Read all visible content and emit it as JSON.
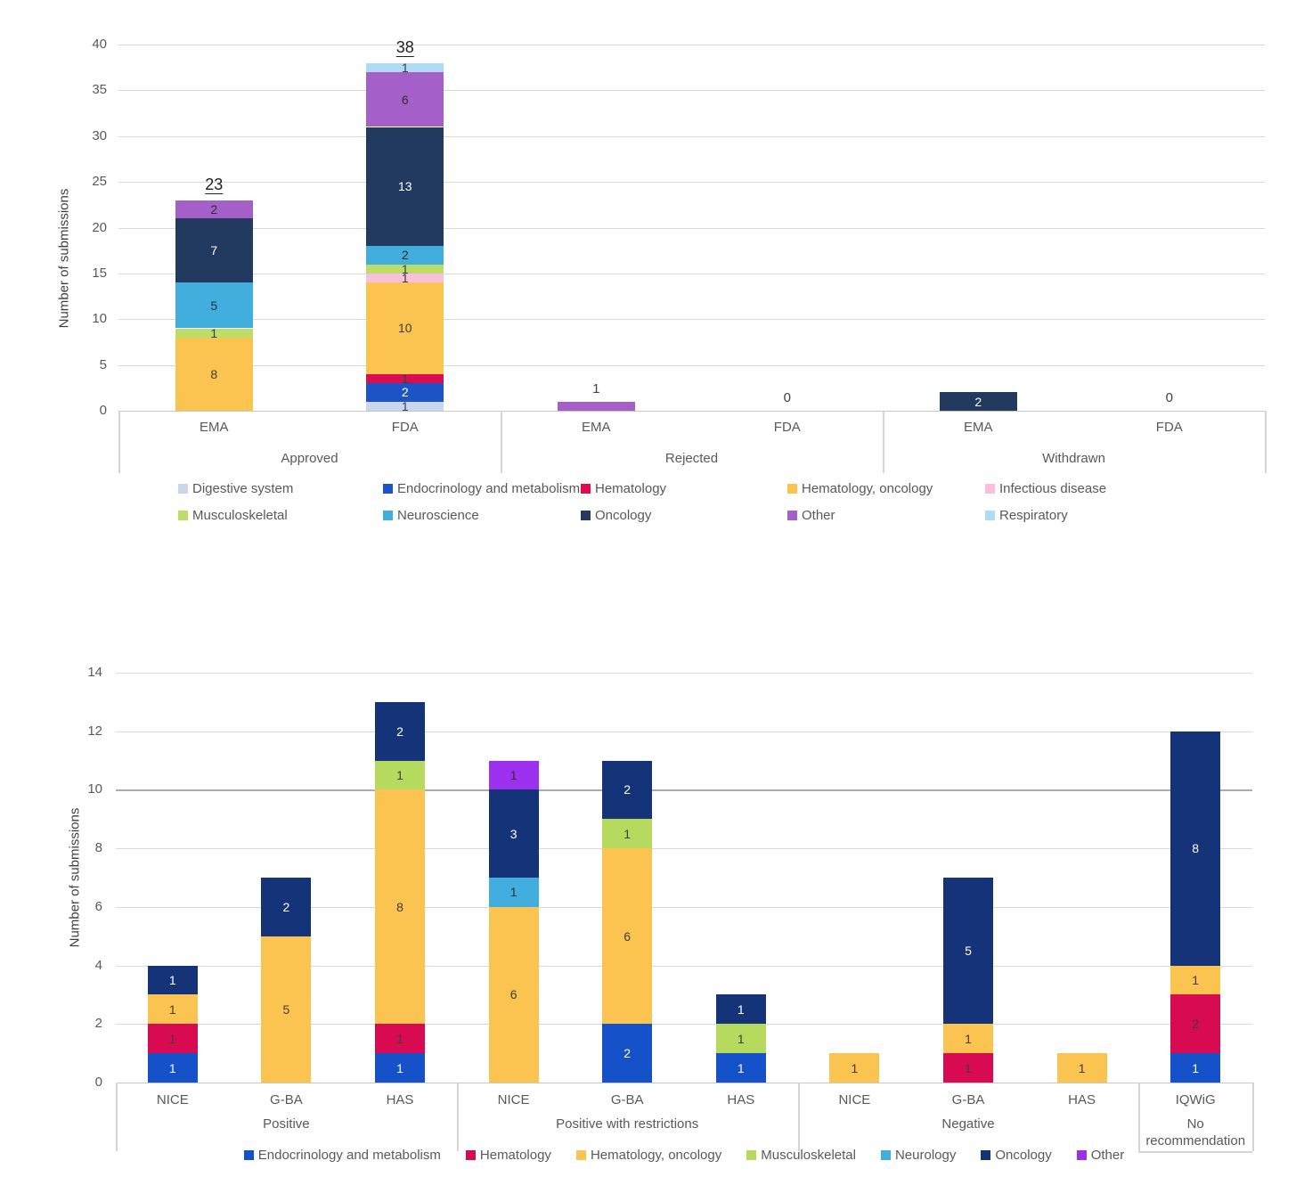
{
  "figure": {
    "y_axis_title": "Number of submissions"
  },
  "chart_data": [
    {
      "type": "bar",
      "stacked": true,
      "title": "",
      "xlabel": "",
      "ylabel": "Number of submissions",
      "ylim": [
        0,
        40
      ],
      "ytick_step": 5,
      "grid": true,
      "legend_position": "bottom",
      "series": {
        "Digestive system": {
          "color": "#c9d6ee",
          "label_color": "#404040"
        },
        "Endocrinology and metabolism": {
          "color": "#1c54c5",
          "label_color": "#ffffff"
        },
        "Hematology": {
          "color": "#da0d53",
          "label_color": "#3d3d3d"
        },
        "Hematology, oncology": {
          "color": "#fbc34f",
          "label_color": "#3d3d3d"
        },
        "Infectious disease": {
          "color": "#f9c0dc",
          "label_color": "#3d3d3d"
        },
        "Musculoskeletal": {
          "color": "#bcdd68",
          "label_color": "#3d3d3d"
        },
        "Neuroscience": {
          "color": "#41aede",
          "label_color": "#2f2f2f"
        },
        "Oncology": {
          "color": "#223a60",
          "label_color": "#ffffff"
        },
        "Other": {
          "color": "#a55fc9",
          "label_color": "#2f2f2f"
        },
        "Respiratory": {
          "color": "#aedcf4",
          "label_color": "#3d3d3d"
        }
      },
      "legend_rows": [
        [
          "Digestive system",
          "Endocrinology and metabolism",
          "Hematology",
          "Hematology, oncology",
          "Infectious disease"
        ],
        [
          "Musculoskeletal",
          "Neuroscience",
          "Oncology",
          "Other",
          "Respiratory"
        ]
      ],
      "groups": [
        {
          "label": "Approved",
          "bars": [
            {
              "label": "EMA",
              "above": "23",
              "above_underline": true,
              "segments": [
                [
                  "Hematology, oncology",
                  8
                ],
                [
                  "Musculoskeletal",
                  1
                ],
                [
                  "Neuroscience",
                  5
                ],
                [
                  "Oncology",
                  7
                ],
                [
                  "Other",
                  2
                ]
              ]
            },
            {
              "label": "FDA",
              "above": "38",
              "above_underline": true,
              "segments": [
                [
                  "Digestive system",
                  1
                ],
                [
                  "Endocrinology and metabolism",
                  2
                ],
                [
                  "Hematology",
                  1
                ],
                [
                  "Hematology, oncology",
                  10
                ],
                [
                  "Infectious disease",
                  1
                ],
                [
                  "Musculoskeletal",
                  1
                ],
                [
                  "Neuroscience",
                  2
                ],
                [
                  "Oncology",
                  13
                ],
                [
                  "Other",
                  6
                ],
                [
                  "Respiratory",
                  1
                ]
              ]
            }
          ]
        },
        {
          "label": "Rejected",
          "bars": [
            {
              "label": "EMA",
              "above": "1",
              "segments": [
                [
                  "Other",
                  1,
                  ""
                ]
              ]
            },
            {
              "label": "FDA",
              "above": "0",
              "segments": []
            }
          ]
        },
        {
          "label": "Withdrawn",
          "bars": [
            {
              "label": "EMA",
              "segments": [
                [
                  "Oncology",
                  2
                ]
              ]
            },
            {
              "label": "FDA",
              "above": "0",
              "segments": []
            }
          ]
        }
      ]
    },
    {
      "type": "bar",
      "stacked": true,
      "title": "",
      "xlabel": "",
      "ylabel": "Number of submissions",
      "ylim": [
        0,
        14
      ],
      "ytick_step": 2,
      "grid": true,
      "emphasis_gridline": 10,
      "legend_position": "bottom",
      "series": {
        "Endocrinology and metabolism": {
          "color": "#1551c8",
          "label_color": "#ffffff"
        },
        "Hematology": {
          "color": "#d80a52",
          "label_color": "#3d3d3d"
        },
        "Hematology, oncology": {
          "color": "#fbc34f",
          "label_color": "#3d3d3d"
        },
        "Musculoskeletal": {
          "color": "#b6da5e",
          "label_color": "#3d3d3d"
        },
        "Neurology": {
          "color": "#41aedf",
          "label_color": "#2f2f2f"
        },
        "Oncology": {
          "color": "#143379",
          "label_color": "#ffffff"
        },
        "Other": {
          "color": "#9b30ee",
          "label_color": "#2f2f2f"
        }
      },
      "legend_rows": [
        [
          "Endocrinology and metabolism",
          "Hematology",
          "Hematology, oncology",
          "Musculoskeletal",
          "Neurology",
          "Oncology",
          "Other"
        ]
      ],
      "groups": [
        {
          "label": "Positive",
          "bars": [
            {
              "label": "NICE",
              "segments": [
                [
                  "Endocrinology and metabolism",
                  1
                ],
                [
                  "Hematology",
                  1
                ],
                [
                  "Hematology, oncology",
                  1
                ],
                [
                  "Oncology",
                  1
                ]
              ]
            },
            {
              "label": "G-BA",
              "segments": [
                [
                  "Hematology, oncology",
                  5
                ],
                [
                  "Oncology",
                  2
                ]
              ]
            },
            {
              "label": "HAS",
              "segments": [
                [
                  "Endocrinology and metabolism",
                  1
                ],
                [
                  "Hematology",
                  1
                ],
                [
                  "Hematology, oncology",
                  8
                ],
                [
                  "Musculoskeletal",
                  1
                ],
                [
                  "Oncology",
                  2
                ]
              ]
            }
          ]
        },
        {
          "label": "Positive with restrictions",
          "bars": [
            {
              "label": "NICE",
              "segments": [
                [
                  "Hematology, oncology",
                  6
                ],
                [
                  "Neurology",
                  1
                ],
                [
                  "Oncology",
                  3
                ],
                [
                  "Other",
                  1
                ]
              ]
            },
            {
              "label": "G-BA",
              "segments": [
                [
                  "Endocrinology and metabolism",
                  2
                ],
                [
                  "Hematology, oncology",
                  6
                ],
                [
                  "Musculoskeletal",
                  1
                ],
                [
                  "Oncology",
                  2
                ]
              ]
            },
            {
              "label": "HAS",
              "segments": [
                [
                  "Endocrinology and metabolism",
                  1
                ],
                [
                  "Musculoskeletal",
                  1
                ],
                [
                  "Oncology",
                  1
                ]
              ]
            }
          ]
        },
        {
          "label": "Negative",
          "bars": [
            {
              "label": "NICE",
              "segments": [
                [
                  "Hematology, oncology",
                  1
                ]
              ]
            },
            {
              "label": "G-BA",
              "segments": [
                [
                  "Hematology",
                  1
                ],
                [
                  "Hematology, oncology",
                  1
                ],
                [
                  "Oncology",
                  5
                ]
              ]
            },
            {
              "label": "HAS",
              "segments": [
                [
                  "Hematology, oncology",
                  1
                ]
              ]
            }
          ]
        },
        {
          "label": "No recommendation",
          "bars": [
            {
              "label": "IQWiG",
              "segments": [
                [
                  "Endocrinology and metabolism",
                  1
                ],
                [
                  "Hematology",
                  2
                ],
                [
                  "Hematology, oncology",
                  1
                ],
                [
                  "Oncology",
                  8
                ]
              ]
            }
          ]
        }
      ]
    }
  ]
}
